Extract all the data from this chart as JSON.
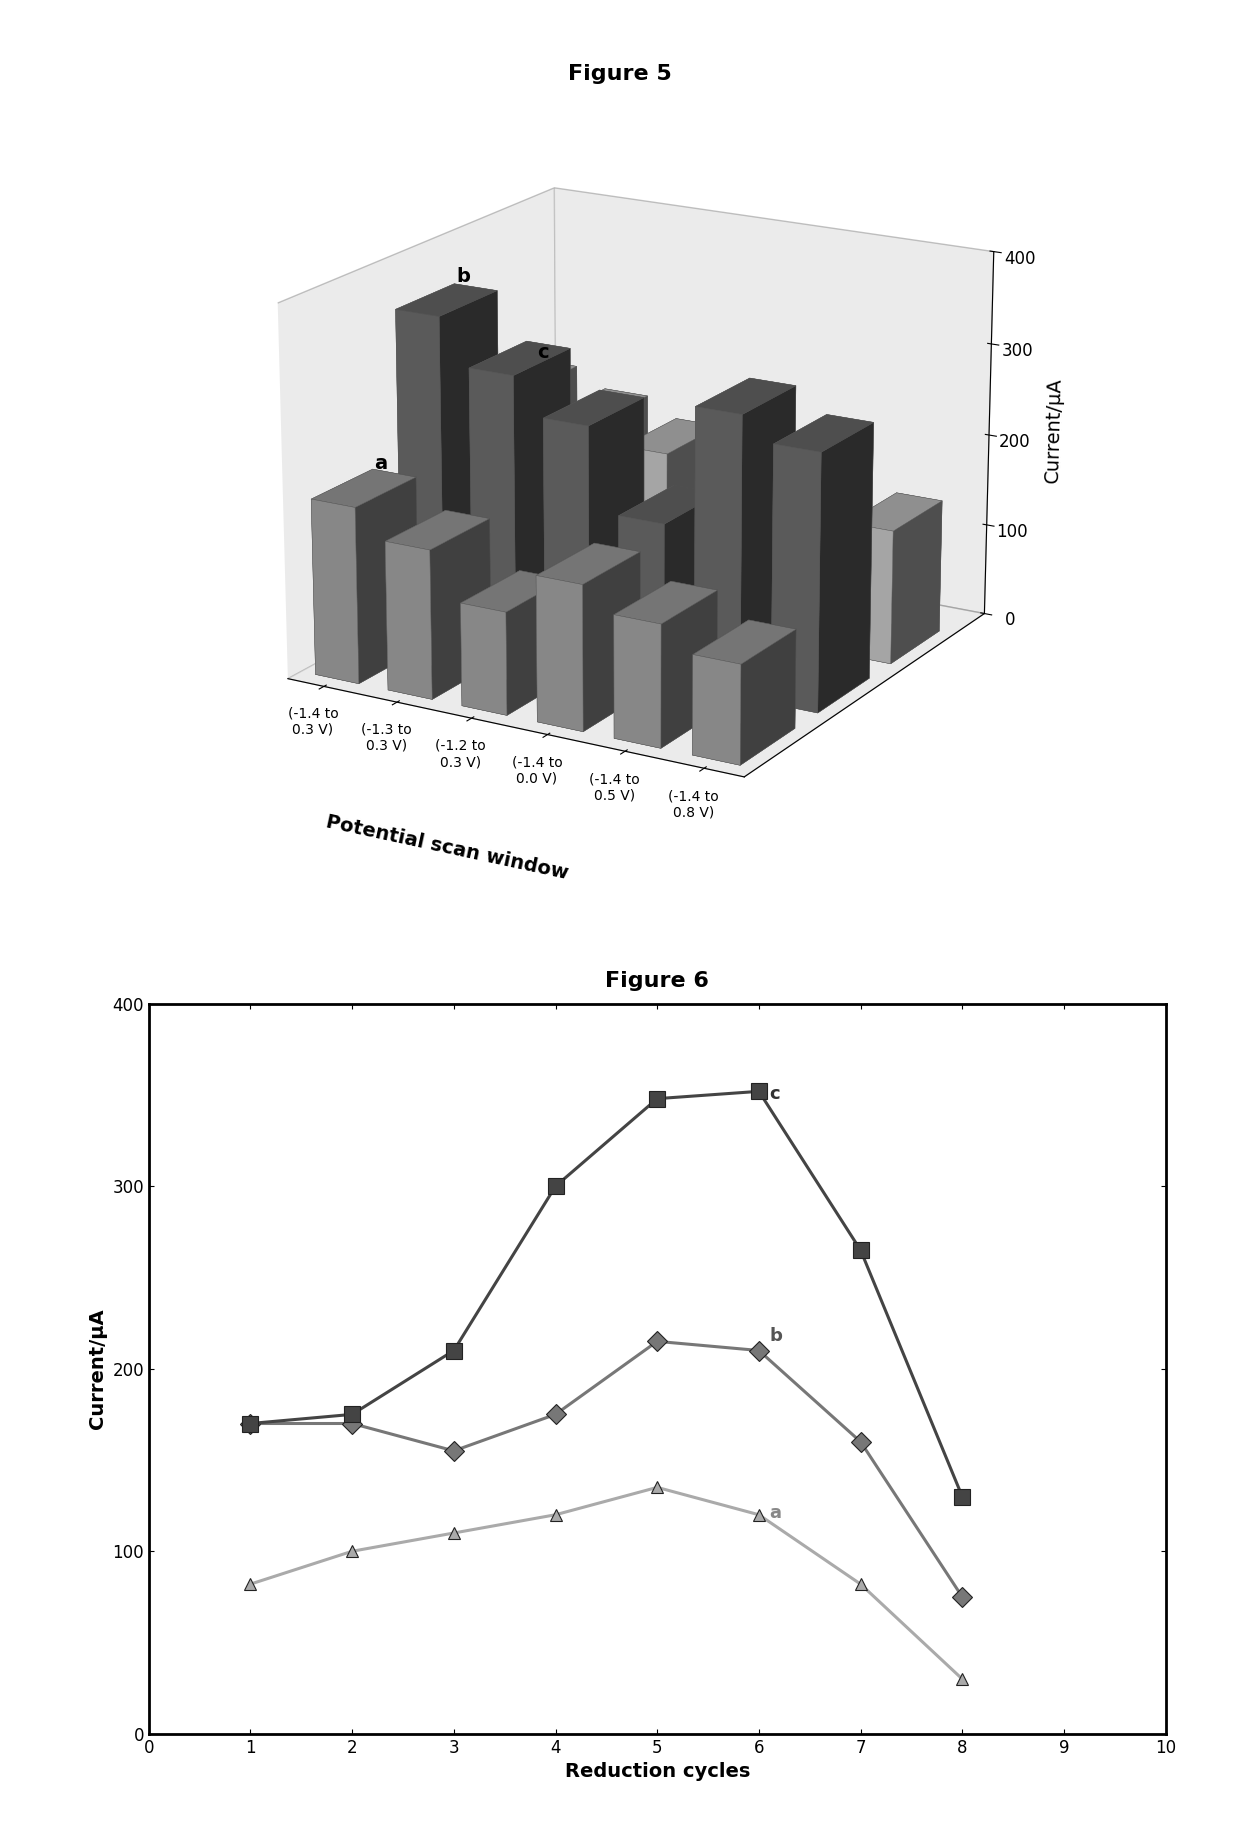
{
  "fig5_title": "Figure 5",
  "fig6_title": "Figure 6",
  "fig5_categories": [
    "(-1.4 to\n0.3 V)",
    "(-1.3 to\n0.3 V)",
    "(-1.2 to\n0.3 V)",
    "(-1.4 to\n0.0 V)",
    "(-1.4 to\n0.5 V)",
    "(-1.4 to\n0.8 V)"
  ],
  "fig5_series_labels": [
    "a",
    "b",
    "c"
  ],
  "fig5_data": {
    "a": [
      190,
      160,
      110,
      155,
      130,
      105
    ],
    "b": [
      350,
      300,
      260,
      170,
      300,
      275
    ],
    "c": [
      225,
      205,
      185,
      175,
      165,
      145
    ]
  },
  "fig5_ylabel": "Current/μA",
  "fig5_xlabel": "Potential scan window",
  "fig5_ylim": [
    0,
    400
  ],
  "fig5_colors": {
    "a": "#999999",
    "b": "#666666",
    "c": "#bbbbbb"
  },
  "fig6_series_labels": [
    "a",
    "b",
    "c"
  ],
  "fig6_x": [
    1,
    2,
    3,
    4,
    5,
    6,
    7,
    8
  ],
  "fig6_data": {
    "a": [
      82,
      100,
      110,
      120,
      135,
      120,
      82,
      30
    ],
    "b": [
      170,
      170,
      155,
      175,
      215,
      210,
      160,
      75
    ],
    "c": [
      170,
      175,
      210,
      300,
      348,
      352,
      265,
      130
    ]
  },
  "fig6_ylabel": "Current/μA",
  "fig6_xlabel": "Reduction cycles",
  "fig6_xlim": [
    0,
    10
  ],
  "fig6_ylim": [
    0,
    400
  ],
  "fig6_colors": {
    "a": "#aaaaaa",
    "b": "#777777",
    "c": "#444444"
  },
  "fig6_markers": {
    "a": "^",
    "b": "D",
    "c": "s"
  },
  "background_color": "#ffffff",
  "title_fontsize": 16,
  "axis_label_fontsize": 14,
  "tick_fontsize": 12
}
